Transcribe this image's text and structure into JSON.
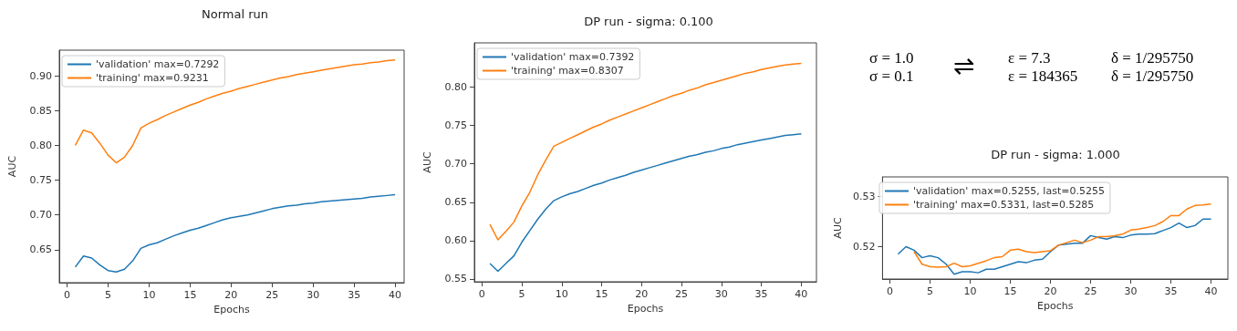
{
  "chart_data": [
    {
      "type": "line",
      "title": "Normal run",
      "xlabel": "Epochs",
      "ylabel": "AUC",
      "xlim": [
        -0.95,
        41.1
      ],
      "ylim": [
        0.6026,
        0.937
      ],
      "xticks": [
        0,
        5,
        10,
        15,
        20,
        25,
        30,
        35,
        40
      ],
      "yticks": [
        {
          "value": 0.65,
          "label": "0.65"
        },
        {
          "value": 0.7,
          "label": "0.70"
        },
        {
          "value": 0.75,
          "label": "0.75"
        },
        {
          "value": 0.8,
          "label": "0.80"
        },
        {
          "value": 0.85,
          "label": "0.85"
        },
        {
          "value": 0.9,
          "label": "0.90"
        }
      ],
      "grid": false,
      "legend": "top left",
      "x": [
        1,
        2,
        3,
        4,
        5,
        6,
        7,
        8,
        9,
        10,
        11,
        12,
        13,
        14,
        15,
        16,
        17,
        18,
        19,
        20,
        21,
        22,
        23,
        24,
        25,
        26,
        27,
        28,
        29,
        30,
        31,
        32,
        33,
        34,
        35,
        36,
        37,
        38,
        39,
        40
      ],
      "series": [
        {
          "name": "'validation' max=0.7292",
          "color": "#1f77b4",
          "values": [
            0.625,
            0.641,
            0.638,
            0.628,
            0.62,
            0.618,
            0.622,
            0.634,
            0.652,
            0.657,
            0.66,
            0.665,
            0.67,
            0.674,
            0.678,
            0.681,
            0.685,
            0.689,
            0.693,
            0.696,
            0.698,
            0.7,
            0.703,
            0.706,
            0.709,
            0.711,
            0.713,
            0.714,
            0.716,
            0.717,
            0.719,
            0.72,
            0.721,
            0.722,
            0.723,
            0.724,
            0.726,
            0.727,
            0.728,
            0.729
          ]
        },
        {
          "name": "'training' max=0.9231",
          "color": "#ff7f0e",
          "values": [
            0.8,
            0.822,
            0.818,
            0.803,
            0.786,
            0.775,
            0.783,
            0.8,
            0.825,
            0.832,
            0.837,
            0.843,
            0.848,
            0.853,
            0.858,
            0.862,
            0.867,
            0.871,
            0.875,
            0.878,
            0.882,
            0.885,
            0.888,
            0.891,
            0.894,
            0.897,
            0.899,
            0.902,
            0.904,
            0.906,
            0.908,
            0.91,
            0.912,
            0.914,
            0.916,
            0.917,
            0.919,
            0.92,
            0.922,
            0.923
          ]
        }
      ]
    },
    {
      "type": "line",
      "title": "DP run - sigma: 0.100",
      "xlabel": "Epochs",
      "ylabel": "AUC",
      "xlim": [
        -0.95,
        41.9
      ],
      "ylim": [
        0.5463,
        0.8577
      ],
      "xticks": [
        0,
        5,
        10,
        15,
        20,
        25,
        30,
        35,
        40
      ],
      "yticks": [
        {
          "value": 0.55,
          "label": "0.55"
        },
        {
          "value": 0.6,
          "label": "0.60"
        },
        {
          "value": 0.65,
          "label": "0.65"
        },
        {
          "value": 0.7,
          "label": "0.70"
        },
        {
          "value": 0.75,
          "label": "0.75"
        },
        {
          "value": 0.8,
          "label": "0.80"
        }
      ],
      "grid": false,
      "legend": "top left",
      "x": [
        1,
        2,
        3,
        4,
        5,
        6,
        7,
        8,
        9,
        10,
        11,
        12,
        13,
        14,
        15,
        16,
        17,
        18,
        19,
        20,
        21,
        22,
        23,
        24,
        25,
        26,
        27,
        28,
        29,
        30,
        31,
        32,
        33,
        34,
        35,
        36,
        37,
        38,
        39,
        40
      ],
      "series": [
        {
          "name": "'validation' max=0.7392",
          "color": "#1f77b4",
          "values": [
            0.57,
            0.56,
            0.57,
            0.58,
            0.598,
            0.613,
            0.628,
            0.641,
            0.652,
            0.657,
            0.661,
            0.664,
            0.668,
            0.672,
            0.675,
            0.679,
            0.682,
            0.685,
            0.689,
            0.692,
            0.695,
            0.698,
            0.701,
            0.704,
            0.707,
            0.71,
            0.712,
            0.715,
            0.717,
            0.72,
            0.722,
            0.725,
            0.727,
            0.729,
            0.731,
            0.733,
            0.735,
            0.737,
            0.738,
            0.739
          ]
        },
        {
          "name": "'training' max=0.8307",
          "color": "#ff7f0e",
          "values": [
            0.621,
            0.601,
            0.612,
            0.624,
            0.645,
            0.663,
            0.686,
            0.705,
            0.723,
            0.728,
            0.733,
            0.738,
            0.743,
            0.748,
            0.752,
            0.757,
            0.761,
            0.765,
            0.769,
            0.773,
            0.777,
            0.781,
            0.785,
            0.789,
            0.792,
            0.796,
            0.799,
            0.803,
            0.806,
            0.809,
            0.812,
            0.815,
            0.818,
            0.82,
            0.823,
            0.825,
            0.827,
            0.829,
            0.83,
            0.831
          ]
        }
      ]
    },
    {
      "type": "other",
      "annotations": [
        "σ = 1.0",
        "σ = 0.1",
        "⇌",
        "ε = 7.3",
        "ε = 184365",
        "δ = 1/295750",
        "δ = 1/295750"
      ]
    },
    {
      "type": "line",
      "title": "DP run - sigma: 1.000",
      "xlabel": "Epochs",
      "ylabel": "AUC",
      "xlim": [
        -0.93,
        42.1
      ],
      "ylim": [
        0.51355,
        0.5339
      ],
      "xticks": [
        0,
        5,
        10,
        15,
        20,
        25,
        30,
        35,
        40
      ],
      "yticks": [
        0.52,
        0.53
      ],
      "grid": false,
      "legend": "top left",
      "x": [
        1,
        2,
        3,
        4,
        5,
        6,
        7,
        8,
        9,
        10,
        11,
        12,
        13,
        14,
        15,
        16,
        17,
        18,
        19,
        20,
        21,
        22,
        23,
        24,
        25,
        26,
        27,
        28,
        29,
        30,
        31,
        32,
        33,
        34,
        35,
        36,
        37,
        38,
        39,
        40
      ],
      "series": [
        {
          "name": "'validation' max=0.5255, last=0.5255",
          "color": "#1f77b4",
          "values": [
            0.5185,
            0.52,
            0.5193,
            0.5178,
            0.5182,
            0.5178,
            0.5165,
            0.5145,
            0.515,
            0.515,
            0.5148,
            0.5155,
            0.5155,
            0.516,
            0.5165,
            0.517,
            0.5168,
            0.5173,
            0.5175,
            0.519,
            0.5203,
            0.5205,
            0.5207,
            0.5207,
            0.5222,
            0.5218,
            0.5215,
            0.522,
            0.5218,
            0.5223,
            0.5225,
            0.5225,
            0.5226,
            0.5232,
            0.5238,
            0.5247,
            0.5238,
            0.5242,
            0.5255,
            0.5255
          ]
        },
        {
          "name": "'training' max=0.5331, last=0.5285",
          "color": "#ff7f0e",
          "x": [
            3,
            4,
            5,
            6,
            7,
            8,
            9,
            10,
            11,
            12,
            13,
            14,
            15,
            16,
            17,
            18,
            19,
            20,
            21,
            22,
            23,
            24,
            25,
            26,
            27,
            28,
            29,
            30,
            31,
            32,
            33,
            34,
            35,
            36,
            37,
            38,
            39,
            40
          ],
          "values": [
            0.519,
            0.5165,
            0.516,
            0.5159,
            0.516,
            0.5167,
            0.516,
            0.5162,
            0.5167,
            0.5172,
            0.5178,
            0.518,
            0.5193,
            0.5195,
            0.519,
            0.5188,
            0.519,
            0.5192,
            0.5203,
            0.5208,
            0.5213,
            0.5208,
            0.5213,
            0.522,
            0.522,
            0.5222,
            0.5225,
            0.5233,
            0.5235,
            0.5238,
            0.5242,
            0.525,
            0.5262,
            0.5262,
            0.5275,
            0.5282,
            0.5283,
            0.5285
          ]
        }
      ]
    }
  ]
}
